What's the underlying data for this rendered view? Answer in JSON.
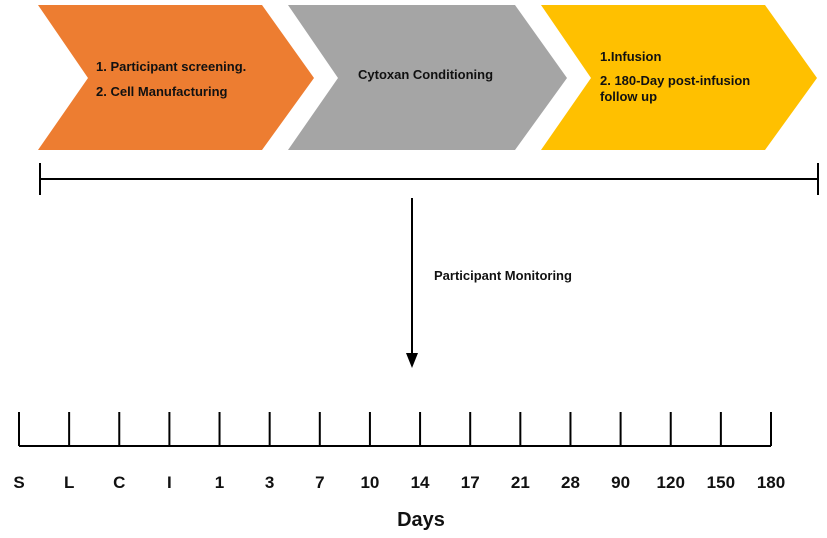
{
  "phases": [
    {
      "lines": [
        "1. Participant screening.",
        "2. Cell Manufacturing"
      ],
      "color": "#ED7D31"
    },
    {
      "lines": [
        "Cytoxan Conditioning"
      ],
      "color": "#A5A5A5"
    },
    {
      "lines": [
        "1.Infusion",
        "2. 180-Day post-infusion",
        "follow up"
      ],
      "color": "#FFC000"
    }
  ],
  "monitoring_label": "Participant Monitoring",
  "timeline": {
    "ticks": [
      "S",
      "L",
      "C",
      "I",
      "1",
      "3",
      "7",
      "10",
      "14",
      "17",
      "21",
      "28",
      "90",
      "120",
      "150",
      "180"
    ],
    "axis_label": "Days"
  }
}
